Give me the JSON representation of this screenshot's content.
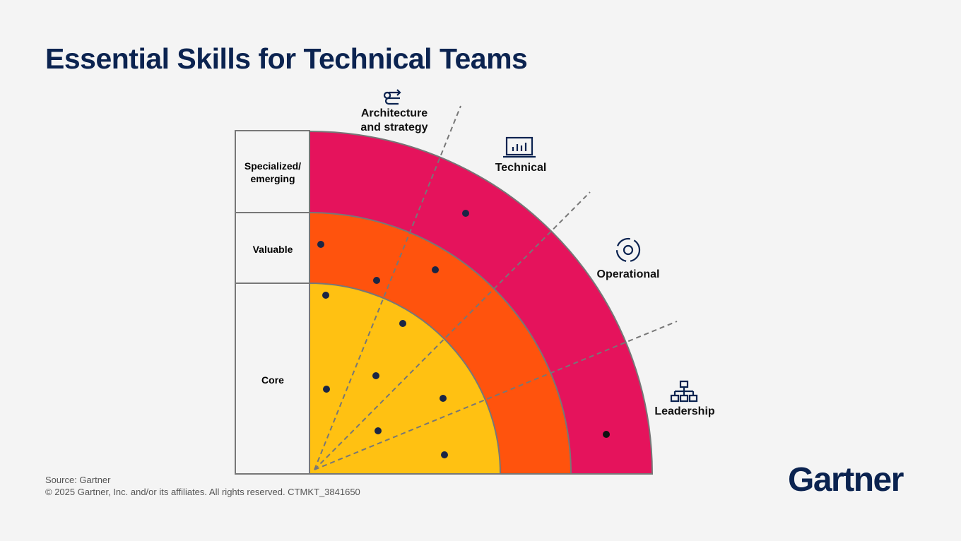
{
  "title": "Essential Skills for Technical Teams",
  "levels": [
    {
      "lines": [
        "Specialized/",
        "emerging"
      ]
    },
    {
      "lines": [
        "Valuable"
      ]
    },
    {
      "lines": [
        "Core"
      ]
    }
  ],
  "categories": [
    {
      "lines": [
        "Architecture",
        "and strategy"
      ]
    },
    {
      "lines": [
        "Technical"
      ]
    },
    {
      "lines": [
        "Operational"
      ]
    },
    {
      "lines": [
        "Leadership"
      ]
    }
  ],
  "footer": {
    "source": "Source: Gartner",
    "copyright": "© 2025 Gartner, Inc. and/or its affiliates. All rights reserved. CTMKT_3841650"
  },
  "logo": "Gartner"
}
